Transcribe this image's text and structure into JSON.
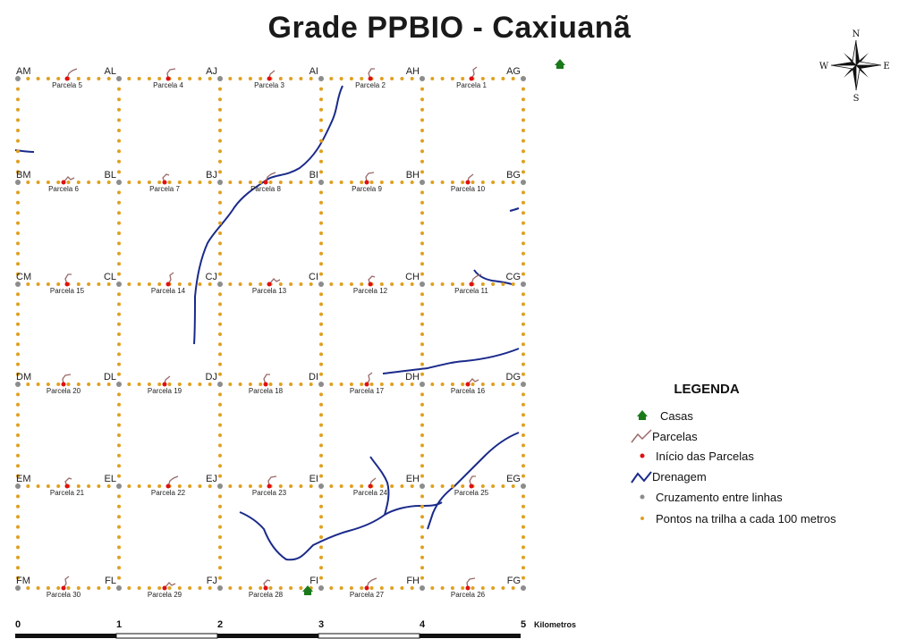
{
  "title": "Grade PPBIO - Caxiuanã",
  "colors": {
    "dots": "#e0a020",
    "nodes": "#8c8c8c",
    "start": "#e01010",
    "parcel_line": "#9a6a6a",
    "drainage": "#1a2a8a",
    "house": "#1a7a1a"
  },
  "grid": {
    "columns": 6,
    "rows": 6,
    "node_rows": [
      [
        "AM",
        "AL",
        "AJ",
        "AI",
        "AH",
        "AG"
      ],
      [
        "BM",
        "BL",
        "BJ",
        "BI",
        "BH",
        "BG"
      ],
      [
        "CM",
        "CL",
        "CJ",
        "CI",
        "CH",
        "CG"
      ],
      [
        "DM",
        "DL",
        "DJ",
        "DI",
        "DH",
        "DG"
      ],
      [
        "EM",
        "EL",
        "EJ",
        "EI",
        "EH",
        "EG"
      ],
      [
        "FM",
        "FL",
        "FJ",
        "FI",
        "FH",
        "FG"
      ]
    ],
    "parcel_rows": [
      [
        "Parcela 5",
        "Parcela 4",
        "Parcela 3",
        "Parcela 2",
        "Parcela 1"
      ],
      [
        "Parcela 6",
        "Parcela 7",
        "Parcela 8",
        "Parcela 9",
        "Parcela 10"
      ],
      [
        "Parcela 15",
        "Parcela 14",
        "Parcela 13",
        "Parcela 12",
        "Parcela 11"
      ],
      [
        "Parcela 20",
        "Parcela 19",
        "Parcela 18",
        "Parcela 17",
        "Parcela 16"
      ],
      [
        "Parcela 21",
        "Parcela 22",
        "Parcela 23",
        "Parcela 24",
        "Parcela 25"
      ],
      [
        "Parcela 30",
        "Parcela 29",
        "Parcela 28",
        "Parcela 27",
        "Parcela 26"
      ]
    ]
  },
  "scale_bar": {
    "labels": [
      "0",
      "1",
      "2",
      "3",
      "4",
      "5"
    ],
    "unit": "Kilometros"
  },
  "legend": {
    "title": "LEGENDA",
    "items": [
      {
        "label": "Casas",
        "symbol": "house-icon"
      },
      {
        "label": "Parcelas",
        "symbol": "parcel-line-icon"
      },
      {
        "label": "Início das Parcelas",
        "symbol": "red-dot-icon"
      },
      {
        "label": "Drenagem",
        "symbol": "drainage-line-icon"
      },
      {
        "label": "Cruzamento entre linhas",
        "symbol": "gray-dot-icon"
      },
      {
        "label": "Pontos na trilha a cada 100 metros",
        "symbol": "orange-dot-icon"
      }
    ]
  },
  "compass": {
    "n": "N",
    "s": "S",
    "e": "E",
    "w": "W"
  }
}
